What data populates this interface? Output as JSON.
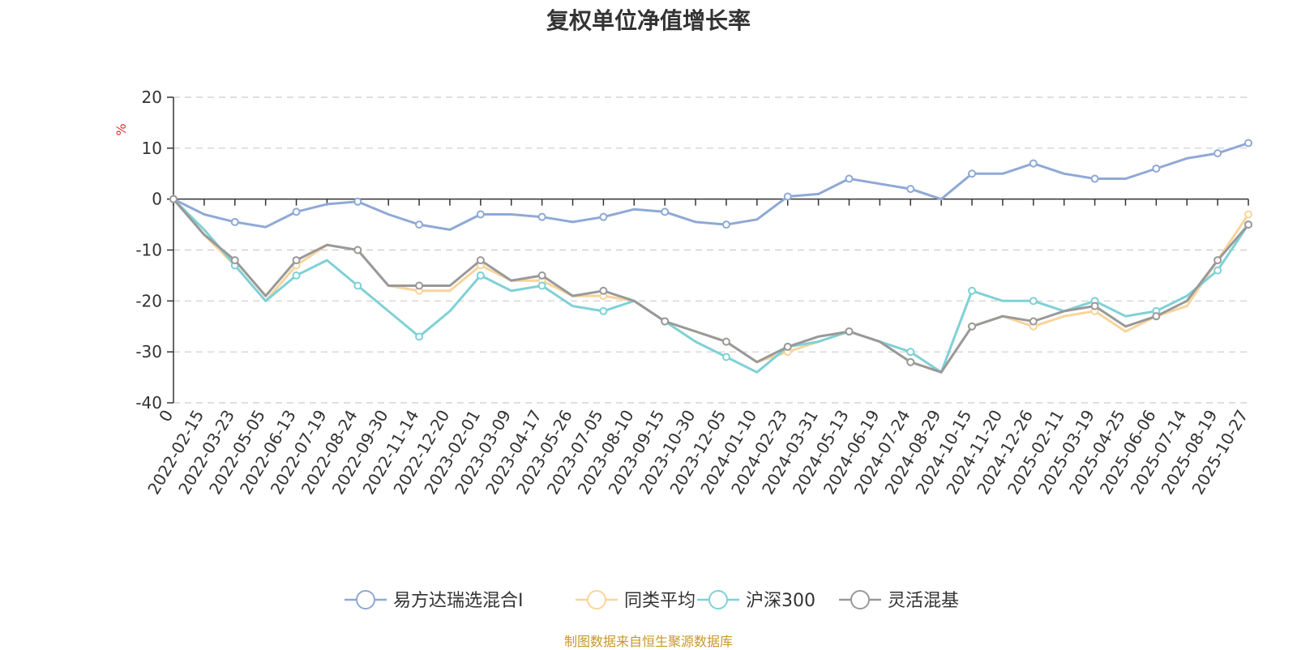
{
  "chart_data": {
    "type": "line",
    "title": "复权单位净值增长率",
    "ylabel": "%",
    "ylim": [
      -40,
      20
    ],
    "y_ticks": [
      20,
      10,
      0,
      -10,
      -20,
      -30,
      -40
    ],
    "grid": true,
    "legend_position": "bottom",
    "x_tick_labels": [
      "0",
      "2022-02-15",
      "2022-03-23",
      "2022-05-05",
      "2022-06-13",
      "2022-07-19",
      "2022-08-24",
      "2022-09-30",
      "2022-11-14",
      "2022-12-20",
      "2023-02-01",
      "2023-03-09",
      "2023-04-17",
      "2023-05-26",
      "2023-07-05",
      "2023-08-10",
      "2023-09-15",
      "2023-10-30",
      "2023-12-05",
      "2024-01-10",
      "2024-02-23",
      "2024-03-31",
      "2024-05-13",
      "2024-06-19",
      "2024-07-24",
      "2024-08-29",
      "2024-10-15",
      "2024-11-20",
      "2024-12-26",
      "2025-02-11",
      "2025-03-19",
      "2025-04-25",
      "2025-06-06",
      "2025-07-14",
      "2025-08-19",
      "2025-10-27"
    ],
    "x_index": [
      0,
      1,
      2,
      3,
      4,
      5,
      6,
      7,
      8,
      9,
      10,
      11,
      12,
      13,
      14,
      15,
      16,
      17,
      18,
      19,
      20,
      21,
      22,
      23,
      24,
      25,
      26,
      27,
      28,
      29,
      30,
      31,
      32,
      33,
      34,
      35
    ],
    "series": [
      {
        "name": "易方达瑞选混合I",
        "color": "#8fa9d6",
        "values": [
          0,
          -3,
          -4.5,
          -5.5,
          -2.5,
          -1,
          -0.5,
          -3,
          -5,
          -6,
          -3,
          -3,
          -3.5,
          -4.5,
          -3.5,
          -2,
          -2.5,
          -4.5,
          -5,
          -4,
          0.5,
          1,
          4,
          3,
          2,
          0,
          5,
          5,
          7,
          5,
          4,
          4,
          6,
          8,
          9,
          11
        ]
      },
      {
        "name": "同类平均",
        "color": "#f9d49b",
        "values": [
          0,
          -7,
          -13,
          -20,
          -13,
          -9,
          -10,
          -17,
          -18,
          -18,
          -13,
          -16,
          -16,
          -19,
          -19,
          -20,
          -24,
          -26,
          -28,
          -32,
          -30,
          -28,
          -26,
          -28,
          -32,
          -34,
          -25,
          -23,
          -25,
          -23,
          -22,
          -26,
          -23,
          -21,
          -12,
          -3
        ]
      },
      {
        "name": "沪深300",
        "color": "#7fd1d6",
        "values": [
          0,
          -6,
          -13,
          -20,
          -15,
          -12,
          -17,
          -22,
          -27,
          -22,
          -15,
          -18,
          -17,
          -21,
          -22,
          -20,
          -24,
          -28,
          -31,
          -34,
          -29,
          -28,
          -26,
          -28,
          -30,
          -34,
          -18,
          -20,
          -20,
          -22,
          -20,
          -23,
          -22,
          -19,
          -14,
          -5
        ]
      },
      {
        "name": "灵活混基",
        "color": "#999999",
        "values": [
          0,
          -7,
          -12,
          -19,
          -12,
          -9,
          -10,
          -17,
          -17,
          -17,
          -12,
          -16,
          -15,
          -19,
          -18,
          -20,
          -24,
          -26,
          -28,
          -32,
          -29,
          -27,
          -26,
          -28,
          -32,
          -34,
          -25,
          -23,
          -24,
          -22,
          -21,
          -25,
          -23,
          -20,
          -12,
          -5
        ]
      }
    ]
  },
  "footer": {
    "source": "制图数据来自恒生聚源数据库"
  }
}
